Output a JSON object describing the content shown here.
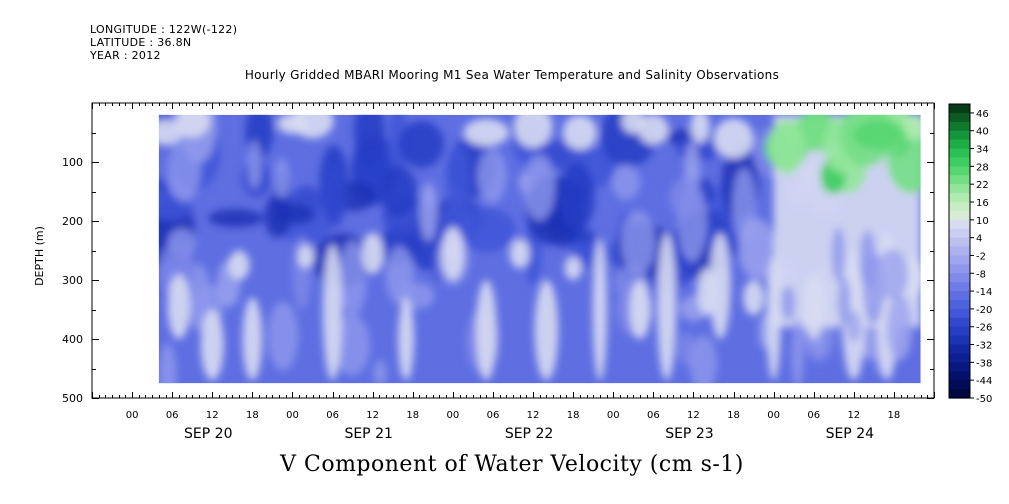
{
  "header": {
    "longitude": "LONGITUDE : 122W(-122)",
    "latitude": "LATITUDE : 36.8N",
    "year": "YEAR : 2012"
  },
  "chart_data": {
    "type": "heatmap",
    "title": "Hourly Gridded MBARI Mooring M1 Sea Water Temperature and Salinity Observations",
    "xlabel": "V Component of Water Velocity (cm s-1)",
    "ylabel": "DEPTH (m)",
    "ylim": [
      500,
      0
    ],
    "y_ticks": [
      100,
      200,
      300,
      400,
      500
    ],
    "x_hour_labels": [
      "00",
      "06",
      "12",
      "18",
      "00",
      "06",
      "12",
      "18",
      "00",
      "06",
      "12",
      "18",
      "00",
      "06",
      "12",
      "18",
      "00",
      "06",
      "12",
      "18"
    ],
    "x_day_labels": [
      "SEP 20",
      "SEP 21",
      "SEP 22",
      "SEP 23",
      "SEP 24"
    ],
    "x_range_hours": [
      -6,
      120
    ],
    "data_x_range_hours": [
      4,
      118
    ],
    "data_depth_range": [
      20,
      475
    ],
    "colorbar": {
      "labels": [
        "46",
        "40",
        "34",
        "28",
        "22",
        "16",
        "10",
        "4",
        "-2",
        "-8",
        "-14",
        "-20",
        "-26",
        "-32",
        "-38",
        "-44",
        "-50"
      ],
      "levels": [
        52,
        46,
        43,
        40,
        37,
        34,
        31,
        28,
        25,
        22,
        19,
        16,
        13,
        10,
        7,
        4,
        1,
        -2,
        -5,
        -8,
        -11,
        -14,
        -17,
        -20,
        -23,
        -26,
        -29,
        -32,
        -35,
        -38,
        -41,
        -44,
        -47,
        -50
      ],
      "colors": [
        "#063d18",
        "#0a5a22",
        "#0f7a2e",
        "#16963a",
        "#1fae45",
        "#2cc154",
        "#3dcd62",
        "#55d671",
        "#74de85",
        "#93e59b",
        "#b0ebb1",
        "#c7ecc4",
        "#d6ead6",
        "#d8dcf2",
        "#cbcdf2",
        "#bcc0f0",
        "#adb2ef",
        "#9fa5ee",
        "#8f98ec",
        "#808ae9",
        "#6f7ce6",
        "#5f6fe2",
        "#4f62de",
        "#4156d8",
        "#3249cf",
        "#263dc4",
        "#1c33b6",
        "#1428a6",
        "#0e1f94",
        "#091781",
        "#05106c",
        "#030b57",
        "#020742"
      ]
    },
    "field_description_values": {
      "background_v": -15,
      "sep24_surface_v": 30,
      "streak_v": 8
    }
  }
}
